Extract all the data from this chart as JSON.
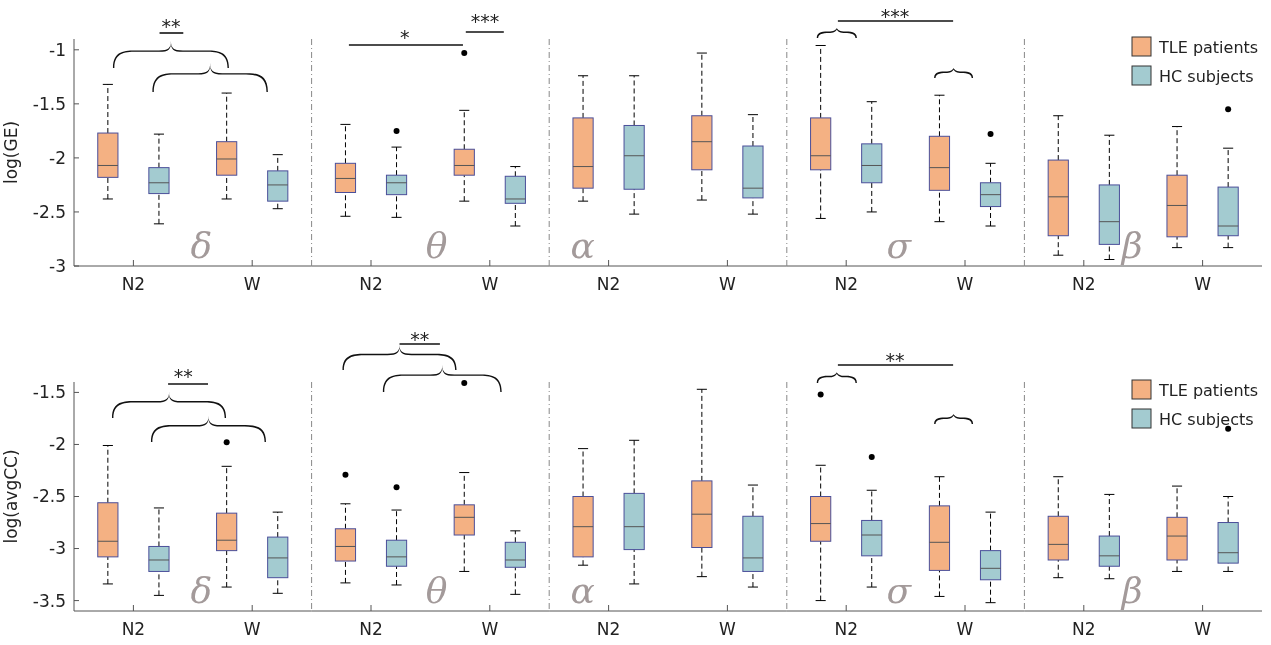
{
  "chart_data": [
    {
      "type": "box",
      "categories": [
        "N2",
        "W"
      ],
      "ylim": [
        -3,
        -0.9
      ],
      "yticks": [
        -3,
        -2.5,
        -2,
        -1.5,
        -1
      ],
      "ylabel": "log(GE)",
      "annotations": [
        "δ",
        "**"
      ],
      "series": [
        {
          "color": "#f4b183",
          "boxes": [
            {
              "low": -2.38,
              "q1": -2.18,
              "median": -2.07,
              "q3": -1.77,
              "high": -1.32
            },
            {
              "low": -2.38,
              "q1": -2.16,
              "median": -2.01,
              "q3": -1.85,
              "high": -1.4
            }
          ]
        },
        {
          "color": "#a3cbd0",
          "boxes": [
            {
              "low": -2.61,
              "q1": -2.33,
              "median": -2.23,
              "q3": -2.09,
              "high": -1.78
            },
            {
              "low": -2.47,
              "q1": -2.4,
              "median": -2.25,
              "q3": -2.12,
              "high": -1.97
            }
          ]
        }
      ]
    },
    {
      "type": "box",
      "categories": [
        "N2",
        "W"
      ],
      "ylim": [
        -3,
        -0.9
      ],
      "tick_labels": "x",
      "annotations": [
        "θ",
        "*",
        "***"
      ],
      "series": [
        {
          "color": "#f4b183",
          "boxes": [
            {
              "low": -2.54,
              "q1": -2.32,
              "median": -2.19,
              "q3": -2.05,
              "high": -1.69
            },
            {
              "low": -2.4,
              "q1": -2.16,
              "median": -2.07,
              "q3": -1.92,
              "high": -1.56,
              "outliers": [
                -1.03
              ]
            }
          ]
        },
        {
          "color": "#a3cbd0",
          "boxes": [
            {
              "low": -2.55,
              "q1": -2.34,
              "median": -2.23,
              "q3": -2.16,
              "high": -1.9,
              "outliers": [
                -1.75
              ]
            },
            {
              "low": -2.63,
              "q1": -2.42,
              "median": -2.38,
              "q3": -2.17,
              "high": -2.08
            }
          ]
        }
      ]
    },
    {
      "type": "box",
      "categories": [
        "N2",
        "W"
      ],
      "ylim": [
        -3,
        -0.9
      ],
      "tick_labels": "x",
      "annotations": [
        "α"
      ],
      "series": [
        {
          "color": "#f4b183",
          "boxes": [
            {
              "low": -2.4,
              "q1": -2.28,
              "median": -2.08,
              "q3": -1.63,
              "high": -1.24
            },
            {
              "low": -2.39,
              "q1": -2.11,
              "median": -1.85,
              "q3": -1.61,
              "high": -1.03
            }
          ]
        },
        {
          "color": "#a3cbd0",
          "boxes": [
            {
              "low": -2.52,
              "q1": -2.29,
              "median": -1.98,
              "q3": -1.7,
              "high": -1.24
            },
            {
              "low": -2.52,
              "q1": -2.37,
              "median": -2.28,
              "q3": -1.89,
              "high": -1.6
            }
          ]
        }
      ]
    },
    {
      "type": "box",
      "categories": [
        "N2",
        "W"
      ],
      "ylim": [
        -3,
        -0.9
      ],
      "tick_labels": "x",
      "annotations": [
        "σ",
        "***"
      ],
      "series": [
        {
          "color": "#f4b183",
          "boxes": [
            {
              "low": -2.56,
              "q1": -2.11,
              "median": -1.98,
              "q3": -1.63,
              "high": -0.96
            },
            {
              "low": -2.59,
              "q1": -2.3,
              "median": -2.09,
              "q3": -1.8,
              "high": -1.42
            }
          ]
        },
        {
          "color": "#a3cbd0",
          "boxes": [
            {
              "low": -2.5,
              "q1": -2.23,
              "median": -2.07,
              "q3": -1.87,
              "high": -1.48
            },
            {
              "low": -2.63,
              "q1": -2.45,
              "median": -2.34,
              "q3": -2.23,
              "high": -2.05,
              "outliers": [
                -1.78
              ]
            }
          ]
        }
      ]
    },
    {
      "type": "box",
      "categories": [
        "N2",
        "W"
      ],
      "ylim": [
        -3,
        -0.9
      ],
      "tick_labels": "x",
      "legend": "top right",
      "annotations": [
        "β"
      ],
      "series": [
        {
          "name": "TLE patients",
          "color": "#f4b183",
          "boxes": [
            {
              "low": -2.9,
              "q1": -2.72,
              "median": -2.36,
              "q3": -2.02,
              "high": -1.61
            },
            {
              "low": -2.83,
              "q1": -2.73,
              "median": -2.44,
              "q3": -2.16,
              "high": -1.71
            }
          ]
        },
        {
          "name": "HC subjects",
          "color": "#a3cbd0",
          "boxes": [
            {
              "low": -2.94,
              "q1": -2.8,
              "median": -2.59,
              "q3": -2.25,
              "high": -1.79
            },
            {
              "low": -2.83,
              "q1": -2.72,
              "median": -2.63,
              "q3": -2.27,
              "high": -1.91,
              "outliers": [
                -1.55
              ]
            }
          ]
        }
      ]
    },
    {
      "type": "box",
      "categories": [
        "N2",
        "W"
      ],
      "ylim": [
        -3.6,
        -1.4
      ],
      "yticks": [
        -3.5,
        -3,
        -2.5,
        -2,
        -1.5
      ],
      "ylabel": "log(avgCC)",
      "annotations": [
        "δ",
        "**"
      ],
      "series": [
        {
          "color": "#f4b183",
          "boxes": [
            {
              "low": -3.34,
              "q1": -3.08,
              "median": -2.93,
              "q3": -2.56,
              "high": -2.01
            },
            {
              "low": -3.37,
              "q1": -3.02,
              "median": -2.92,
              "q3": -2.66,
              "high": -2.21,
              "outliers": [
                -1.98
              ]
            }
          ]
        },
        {
          "color": "#a3cbd0",
          "boxes": [
            {
              "low": -3.45,
              "q1": -3.22,
              "median": -3.11,
              "q3": -2.98,
              "high": -2.61
            },
            {
              "low": -3.43,
              "q1": -3.28,
              "median": -3.09,
              "q3": -2.89,
              "high": -2.65
            }
          ]
        }
      ]
    },
    {
      "type": "box",
      "categories": [
        "N2",
        "W"
      ],
      "ylim": [
        -3.6,
        -1.4
      ],
      "tick_labels": "x",
      "annotations": [
        "θ",
        "**"
      ],
      "series": [
        {
          "color": "#f4b183",
          "boxes": [
            {
              "low": -3.33,
              "q1": -3.12,
              "median": -2.98,
              "q3": -2.81,
              "high": -2.57,
              "outliers": [
                -2.29
              ]
            },
            {
              "low": -3.22,
              "q1": -2.87,
              "median": -2.7,
              "q3": -2.58,
              "high": -2.27,
              "outliers": [
                -1.41
              ]
            }
          ]
        },
        {
          "color": "#a3cbd0",
          "boxes": [
            {
              "low": -3.35,
              "q1": -3.17,
              "median": -3.08,
              "q3": -2.92,
              "high": -2.63,
              "outliers": [
                -2.41
              ]
            },
            {
              "low": -3.44,
              "q1": -3.18,
              "median": -3.11,
              "q3": -2.94,
              "high": -2.83
            }
          ]
        }
      ]
    },
    {
      "type": "box",
      "categories": [
        "N2",
        "W"
      ],
      "ylim": [
        -3.6,
        -1.4
      ],
      "tick_labels": "x",
      "annotations": [
        "α"
      ],
      "series": [
        {
          "color": "#f4b183",
          "boxes": [
            {
              "low": -3.16,
              "q1": -3.08,
              "median": -2.79,
              "q3": -2.5,
              "high": -2.04
            },
            {
              "low": -3.27,
              "q1": -2.99,
              "median": -2.67,
              "q3": -2.35,
              "high": -1.47
            }
          ]
        },
        {
          "color": "#a3cbd0",
          "boxes": [
            {
              "low": -3.34,
              "q1": -3.01,
              "median": -2.79,
              "q3": -2.47,
              "high": -1.96
            },
            {
              "low": -3.37,
              "q1": -3.22,
              "median": -3.09,
              "q3": -2.69,
              "high": -2.39
            }
          ]
        }
      ]
    },
    {
      "type": "box",
      "categories": [
        "N2",
        "W"
      ],
      "ylim": [
        -3.6,
        -1.4
      ],
      "tick_labels": "x",
      "annotations": [
        "σ",
        "**"
      ],
      "series": [
        {
          "color": "#f4b183",
          "boxes": [
            {
              "low": -3.5,
              "q1": -2.93,
              "median": -2.76,
              "q3": -2.5,
              "high": -2.2,
              "outliers": [
                -1.52
              ]
            },
            {
              "low": -3.46,
              "q1": -3.21,
              "median": -2.94,
              "q3": -2.59,
              "high": -2.31
            }
          ]
        },
        {
          "color": "#a3cbd0",
          "boxes": [
            {
              "low": -3.37,
              "q1": -3.07,
              "median": -2.87,
              "q3": -2.73,
              "high": -2.44,
              "outliers": [
                -2.12
              ]
            },
            {
              "low": -3.52,
              "q1": -3.3,
              "median": -3.19,
              "q3": -3.02,
              "high": -2.65
            }
          ]
        }
      ]
    },
    {
      "type": "box",
      "categories": [
        "N2",
        "W"
      ],
      "ylim": [
        -3.6,
        -1.4
      ],
      "tick_labels": "x",
      "legend": "top right",
      "annotations": [
        "β"
      ],
      "series": [
        {
          "name": "TLE patients",
          "color": "#f4b183",
          "boxes": [
            {
              "low": -3.28,
              "q1": -3.11,
              "median": -2.96,
              "q3": -2.69,
              "high": -2.31
            },
            {
              "low": -3.22,
              "q1": -3.11,
              "median": -2.88,
              "q3": -2.7,
              "high": -2.4
            }
          ]
        },
        {
          "name": "HC subjects",
          "color": "#a3cbd0",
          "boxes": [
            {
              "low": -3.29,
              "q1": -3.17,
              "median": -3.07,
              "q3": -2.88,
              "high": -2.48
            },
            {
              "low": -3.22,
              "q1": -3.14,
              "median": -3.04,
              "q3": -2.75,
              "high": -2.5,
              "outliers": [
                -1.85
              ]
            }
          ]
        }
      ]
    }
  ]
}
